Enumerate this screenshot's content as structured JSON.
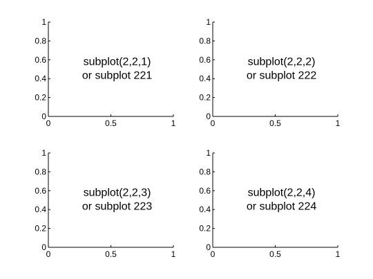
{
  "chart_data": [
    {
      "type": "scatter",
      "title": "",
      "xlabel": "",
      "ylabel": "",
      "xlim": [
        0,
        1
      ],
      "ylim": [
        0,
        1
      ],
      "xticks": [
        "0",
        "0.5",
        "1"
      ],
      "yticks": [
        "0",
        "0.2",
        "0.4",
        "0.6",
        "0.8",
        "1"
      ],
      "series": [],
      "grid": false,
      "annotation": [
        "subplot(2,2,1)",
        "or subplot 221"
      ]
    },
    {
      "type": "scatter",
      "title": "",
      "xlabel": "",
      "ylabel": "",
      "xlim": [
        0,
        1
      ],
      "ylim": [
        0,
        1
      ],
      "xticks": [
        "0",
        "0.5",
        "1"
      ],
      "yticks": [
        "0",
        "0.2",
        "0.4",
        "0.6",
        "0.8",
        "1"
      ],
      "series": [],
      "grid": false,
      "annotation": [
        "subplot(2,2,2)",
        "or subplot 222"
      ]
    },
    {
      "type": "scatter",
      "title": "",
      "xlabel": "",
      "ylabel": "",
      "xlim": [
        0,
        1
      ],
      "ylim": [
        0,
        1
      ],
      "xticks": [
        "0",
        "0.5",
        "1"
      ],
      "yticks": [
        "0",
        "0.2",
        "0.4",
        "0.6",
        "0.8",
        "1"
      ],
      "series": [],
      "grid": false,
      "annotation": [
        "subplot(2,2,3)",
        "or subplot 223"
      ]
    },
    {
      "type": "scatter",
      "title": "",
      "xlabel": "",
      "ylabel": "",
      "xlim": [
        0,
        1
      ],
      "ylim": [
        0,
        1
      ],
      "xticks": [
        "0",
        "0.5",
        "1"
      ],
      "yticks": [
        "0",
        "0.2",
        "0.4",
        "0.6",
        "0.8",
        "1"
      ],
      "series": [],
      "grid": false,
      "annotation": [
        "subplot(2,2,4)",
        "or subplot 224"
      ]
    }
  ]
}
